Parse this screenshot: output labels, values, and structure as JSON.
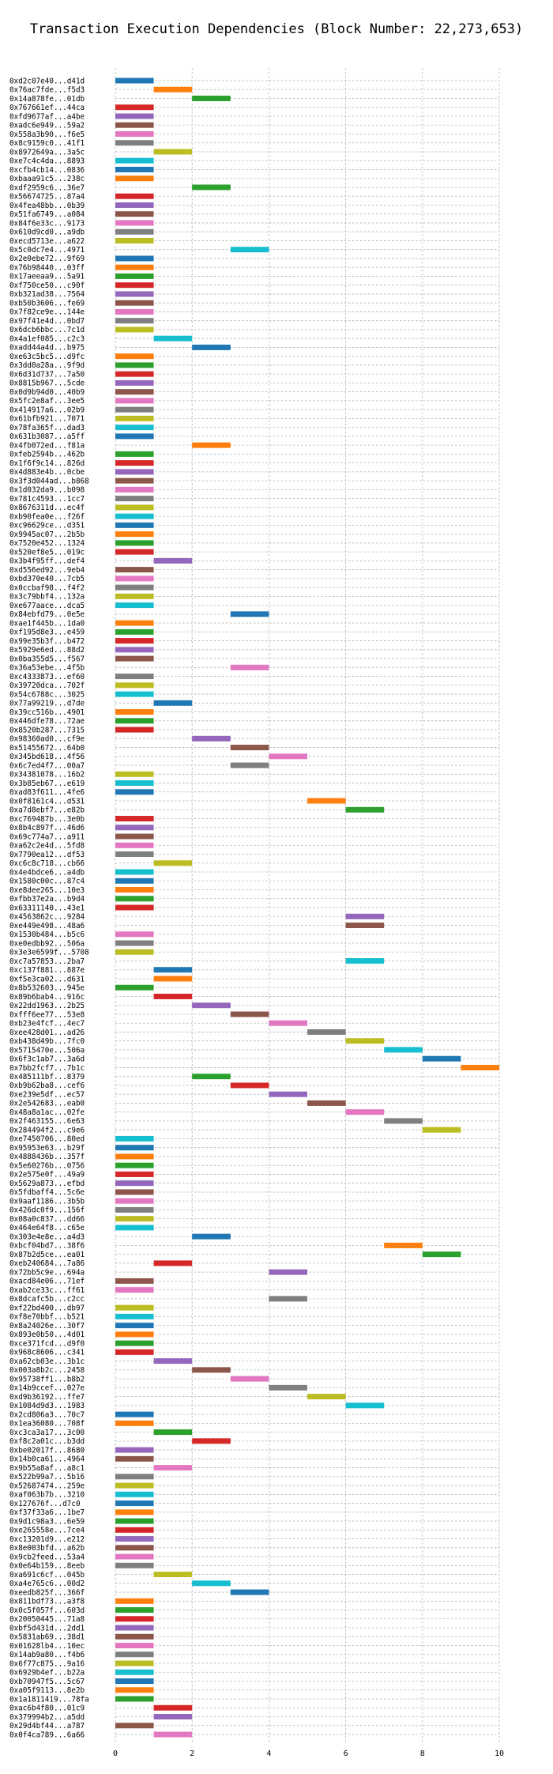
{
  "chart_data": {
    "type": "gantt",
    "title": "Transaction Execution Dependencies (Block Number: 22,273,653)",
    "xlim": [
      0,
      10
    ],
    "xticks": [
      0,
      2,
      4,
      6,
      8,
      10
    ],
    "grid": true,
    "palette": [
      "#1f77b4",
      "#ff7f0e",
      "#2ca02c",
      "#d62728",
      "#9467bd",
      "#8c564b",
      "#e377c2",
      "#7f7f7f",
      "#bcbd22",
      "#17becf"
    ],
    "tasks": [
      {
        "tx": "0xd2c07e40...d41d",
        "start": 0,
        "end": 1
      },
      {
        "tx": "0x76ac7fde...f5d3",
        "start": 1,
        "end": 2
      },
      {
        "tx": "0x14a878fe...01db",
        "start": 2,
        "end": 3
      },
      {
        "tx": "0x767661ef...44ca",
        "start": 0,
        "end": 1
      },
      {
        "tx": "0xfd9677af...a4be",
        "start": 0,
        "end": 1
      },
      {
        "tx": "0xadc6e949...59a2",
        "start": 0,
        "end": 1
      },
      {
        "tx": "0x558a3b90...f6e5",
        "start": 0,
        "end": 1
      },
      {
        "tx": "0x8c9159c0...41f1",
        "start": 0,
        "end": 1
      },
      {
        "tx": "0x8972649a...3a5c",
        "start": 1,
        "end": 2
      },
      {
        "tx": "0xe7c4c4da...8893",
        "start": 0,
        "end": 1
      },
      {
        "tx": "0xcfb4cb14...0836",
        "start": 0,
        "end": 1
      },
      {
        "tx": "0xbaaa91c5...238c",
        "start": 0,
        "end": 1
      },
      {
        "tx": "0xdf2959c6...36e7",
        "start": 2,
        "end": 3
      },
      {
        "tx": "0x56674725...87a4",
        "start": 0,
        "end": 1
      },
      {
        "tx": "0x4fea48bb...0b39",
        "start": 0,
        "end": 1
      },
      {
        "tx": "0x51fa6749...a084",
        "start": 0,
        "end": 1
      },
      {
        "tx": "0x84f6e33c...9173",
        "start": 0,
        "end": 1
      },
      {
        "tx": "0x610d9cd0...a9db",
        "start": 0,
        "end": 1
      },
      {
        "tx": "0xecd5713e...a622",
        "start": 0,
        "end": 1
      },
      {
        "tx": "0x5c0dc7e4...4971",
        "start": 3,
        "end": 4
      },
      {
        "tx": "0x2e0ebe72...9f69",
        "start": 0,
        "end": 1
      },
      {
        "tx": "0x76b98440...03ff",
        "start": 0,
        "end": 1
      },
      {
        "tx": "0x17aeeaa9...5a91",
        "start": 0,
        "end": 1
      },
      {
        "tx": "0xf750ce50...c90f",
        "start": 0,
        "end": 1
      },
      {
        "tx": "0xb321ad38...7564",
        "start": 0,
        "end": 1
      },
      {
        "tx": "0xb50b3606...fe69",
        "start": 0,
        "end": 1
      },
      {
        "tx": "0x7f82ce9e...144e",
        "start": 0,
        "end": 1
      },
      {
        "tx": "0x97f41e4d...0bd7",
        "start": 0,
        "end": 1
      },
      {
        "tx": "0x6dcb6bbc...7c1d",
        "start": 0,
        "end": 1
      },
      {
        "tx": "0x4a1ef085...c2c3",
        "start": 1,
        "end": 2
      },
      {
        "tx": "0xadd44a4d...b975",
        "start": 2,
        "end": 3
      },
      {
        "tx": "0xe63c5bc5...d9fc",
        "start": 0,
        "end": 1
      },
      {
        "tx": "0x3dd0a28a...9f9d",
        "start": 0,
        "end": 1
      },
      {
        "tx": "0x6d31d737...7a50",
        "start": 0,
        "end": 1
      },
      {
        "tx": "0x8815b967...5cde",
        "start": 0,
        "end": 1
      },
      {
        "tx": "0x0d9b94d0...40b9",
        "start": 0,
        "end": 1
      },
      {
        "tx": "0x5fc2e8af...3ee5",
        "start": 0,
        "end": 1
      },
      {
        "tx": "0x414917a6...02b9",
        "start": 0,
        "end": 1
      },
      {
        "tx": "0x61bfb921...7071",
        "start": 0,
        "end": 1
      },
      {
        "tx": "0x78fa365f...dad3",
        "start": 0,
        "end": 1
      },
      {
        "tx": "0x631b3087...a5ff",
        "start": 0,
        "end": 1
      },
      {
        "tx": "0x4fb072ed...f81a",
        "start": 2,
        "end": 3
      },
      {
        "tx": "0xfeb2594b...462b",
        "start": 0,
        "end": 1
      },
      {
        "tx": "0x1f6f9c14...826d",
        "start": 0,
        "end": 1
      },
      {
        "tx": "0x4d883e4b...0cbe",
        "start": 0,
        "end": 1
      },
      {
        "tx": "0x3f3d044ad...b868",
        "start": 0,
        "end": 1
      },
      {
        "tx": "0x1d032da9...b098",
        "start": 0,
        "end": 1
      },
      {
        "tx": "0x781c4593...1cc7",
        "start": 0,
        "end": 1
      },
      {
        "tx": "0x8676311d...ec4f",
        "start": 0,
        "end": 1
      },
      {
        "tx": "0xb90fea0e...f26f",
        "start": 0,
        "end": 1
      },
      {
        "tx": "0xc96629ce...d351",
        "start": 0,
        "end": 1
      },
      {
        "tx": "0x9945ac07...2b5b",
        "start": 0,
        "end": 1
      },
      {
        "tx": "0x7520e452...1324",
        "start": 0,
        "end": 1
      },
      {
        "tx": "0x520ef8e5...019c",
        "start": 0,
        "end": 1
      },
      {
        "tx": "0x3b4f95ff...def4",
        "start": 1,
        "end": 2
      },
      {
        "tx": "0xd556ed92...9eb4",
        "start": 0,
        "end": 1
      },
      {
        "tx": "0xbd370e40...7cb5",
        "start": 0,
        "end": 1
      },
      {
        "tx": "0x0ccbaf98...f4f2",
        "start": 0,
        "end": 1
      },
      {
        "tx": "0x3c79bbf4...132a",
        "start": 0,
        "end": 1
      },
      {
        "tx": "0xe677aace...dca5",
        "start": 0,
        "end": 1
      },
      {
        "tx": "0x84ebfd79...0e5e",
        "start": 3,
        "end": 4
      },
      {
        "tx": "0xae1f445b...1da0",
        "start": 0,
        "end": 1
      },
      {
        "tx": "0xf195d8e3...e459",
        "start": 0,
        "end": 1
      },
      {
        "tx": "0x99e35b3f...b472",
        "start": 0,
        "end": 1
      },
      {
        "tx": "0x5929e6ed...88d2",
        "start": 0,
        "end": 1
      },
      {
        "tx": "0x0ba355d5...f567",
        "start": 0,
        "end": 1
      },
      {
        "tx": "0x36a53ebe...4f5b",
        "start": 3,
        "end": 4
      },
      {
        "tx": "0xc4333873...ef60",
        "start": 0,
        "end": 1
      },
      {
        "tx": "0x39720dca...702f",
        "start": 0,
        "end": 1
      },
      {
        "tx": "0x54c6788c...3025",
        "start": 0,
        "end": 1
      },
      {
        "tx": "0x77a99219...d7de",
        "start": 1,
        "end": 2
      },
      {
        "tx": "0x39cc516b...4901",
        "start": 0,
        "end": 1
      },
      {
        "tx": "0x446dfe78...72ae",
        "start": 0,
        "end": 1
      },
      {
        "tx": "0x8520b287...7315",
        "start": 0,
        "end": 1
      },
      {
        "tx": "0x98360ad0...cf9e",
        "start": 2,
        "end": 3
      },
      {
        "tx": "0x51455672...64b0",
        "start": 3,
        "end": 4
      },
      {
        "tx": "0x345bd618...4f56",
        "start": 4,
        "end": 5
      },
      {
        "tx": "0x6c7ed4f7...00a7",
        "start": 3,
        "end": 4
      },
      {
        "tx": "0x34381078...16b2",
        "start": 0,
        "end": 1
      },
      {
        "tx": "0x3b85eb67...e619",
        "start": 0,
        "end": 1
      },
      {
        "tx": "0xad83f611...4fe6",
        "start": 0,
        "end": 1
      },
      {
        "tx": "0x0f8161c4...d531",
        "start": 5,
        "end": 6
      },
      {
        "tx": "0xa7d8ebf7...e82b",
        "start": 6,
        "end": 7
      },
      {
        "tx": "0xc769487b...3e0b",
        "start": 0,
        "end": 1
      },
      {
        "tx": "0x8b4c897f...46d6",
        "start": 0,
        "end": 1
      },
      {
        "tx": "0x69c774a7...a911",
        "start": 0,
        "end": 1
      },
      {
        "tx": "0xa62c2e4d...5fd8",
        "start": 0,
        "end": 1
      },
      {
        "tx": "0x7790ea12...df53",
        "start": 0,
        "end": 1
      },
      {
        "tx": "0xc6c8c718...cb66",
        "start": 1,
        "end": 2
      },
      {
        "tx": "0x4e4bdce6...a4db",
        "start": 0,
        "end": 1
      },
      {
        "tx": "0x1580c00c...87c4",
        "start": 0,
        "end": 1
      },
      {
        "tx": "0xe8dee265...10e3",
        "start": 0,
        "end": 1
      },
      {
        "tx": "0xfbb37e2a...b9d4",
        "start": 0,
        "end": 1
      },
      {
        "tx": "0x63311140...43e1",
        "start": 0,
        "end": 1
      },
      {
        "tx": "0x4563862c...9284",
        "start": 6,
        "end": 7
      },
      {
        "tx": "0xe449e498...48a6",
        "start": 6,
        "end": 7
      },
      {
        "tx": "0x1530b484...b5c6",
        "start": 0,
        "end": 1
      },
      {
        "tx": "0xe0edbb92...506a",
        "start": 0,
        "end": 1
      },
      {
        "tx": "0x3e3e6599f...5708",
        "start": 0,
        "end": 1
      },
      {
        "tx": "0xc7a57853...2ba7",
        "start": 6,
        "end": 7
      },
      {
        "tx": "0xc137f881...887e",
        "start": 1,
        "end": 2
      },
      {
        "tx": "0xf5e3ca02...d631",
        "start": 1,
        "end": 2
      },
      {
        "tx": "0x8b532603...945e",
        "start": 0,
        "end": 1
      },
      {
        "tx": "0x89b6bab4...916c",
        "start": 1,
        "end": 2
      },
      {
        "tx": "0x22dd1963...2b25",
        "start": 2,
        "end": 3
      },
      {
        "tx": "0xfff6ee77...53e8",
        "start": 3,
        "end": 4
      },
      {
        "tx": "0xb23e4fcf...4ec7",
        "start": 4,
        "end": 5
      },
      {
        "tx": "0xee428d01...ad26",
        "start": 5,
        "end": 6
      },
      {
        "tx": "0xb438d49b...7fc0",
        "start": 6,
        "end": 7
      },
      {
        "tx": "0x5715470e...506a",
        "start": 7,
        "end": 8
      },
      {
        "tx": "0x6f3c1ab7...3a6d",
        "start": 8,
        "end": 9
      },
      {
        "tx": "0x7bb2fcf7...7b1c",
        "start": 9,
        "end": 10
      },
      {
        "tx": "0x485111bf...8379",
        "start": 2,
        "end": 3
      },
      {
        "tx": "0xb9b62ba8...cef6",
        "start": 3,
        "end": 4
      },
      {
        "tx": "0xe239e5df...ec57",
        "start": 4,
        "end": 5
      },
      {
        "tx": "0x2e542683...eab0",
        "start": 5,
        "end": 6
      },
      {
        "tx": "0x48a8a1ac...02fe",
        "start": 6,
        "end": 7
      },
      {
        "tx": "0x2f463155...6e63",
        "start": 7,
        "end": 8
      },
      {
        "tx": "0x284494f2...c9e6",
        "start": 8,
        "end": 9
      },
      {
        "tx": "0xe7450706...80ed",
        "start": 0,
        "end": 1
      },
      {
        "tx": "0x95953e63...b29f",
        "start": 0,
        "end": 1
      },
      {
        "tx": "0x4888436b...357f",
        "start": 0,
        "end": 1
      },
      {
        "tx": "0x5e60276b...0756",
        "start": 0,
        "end": 1
      },
      {
        "tx": "0x2e575e0f...49a9",
        "start": 0,
        "end": 1
      },
      {
        "tx": "0x5629a873...efbd",
        "start": 0,
        "end": 1
      },
      {
        "tx": "0x5fdbaff4...5c6e",
        "start": 0,
        "end": 1
      },
      {
        "tx": "0x9aaf1186...3b5b",
        "start": 0,
        "end": 1
      },
      {
        "tx": "0x426dc0f9...156f",
        "start": 0,
        "end": 1
      },
      {
        "tx": "0x08a0c837...dd66",
        "start": 0,
        "end": 1
      },
      {
        "tx": "0x464e64f8...c65e",
        "start": 0,
        "end": 1
      },
      {
        "tx": "0x303e4e8e...a4d3",
        "start": 2,
        "end": 3
      },
      {
        "tx": "0xbcf04bd7...38f6",
        "start": 7,
        "end": 8
      },
      {
        "tx": "0x87b2d5ce...ea01",
        "start": 8,
        "end": 9
      },
      {
        "tx": "0xeb240684...7a86",
        "start": 1,
        "end": 2
      },
      {
        "tx": "0x72bb5c9e...694a",
        "start": 4,
        "end": 5
      },
      {
        "tx": "0xacd84e06...71ef",
        "start": 0,
        "end": 1
      },
      {
        "tx": "0xab2ce33c...ff61",
        "start": 0,
        "end": 1
      },
      {
        "tx": "0x8dcafc5b...c2cc",
        "start": 4,
        "end": 5
      },
      {
        "tx": "0xf22bd400...db97",
        "start": 0,
        "end": 1
      },
      {
        "tx": "0xf8e70bbf...b521",
        "start": 0,
        "end": 1
      },
      {
        "tx": "0x8a24026e...30f7",
        "start": 0,
        "end": 1
      },
      {
        "tx": "0x893e0b50...4d01",
        "start": 0,
        "end": 1
      },
      {
        "tx": "0xce371fcd...d9f0",
        "start": 0,
        "end": 1
      },
      {
        "tx": "0x968c8606...c341",
        "start": 0,
        "end": 1
      },
      {
        "tx": "0xa62cb03e...3b1c",
        "start": 1,
        "end": 2
      },
      {
        "tx": "0x003a8b2c...2458",
        "start": 2,
        "end": 3
      },
      {
        "tx": "0x95738ff1...b8b2",
        "start": 3,
        "end": 4
      },
      {
        "tx": "0x14b9ccef...027e",
        "start": 4,
        "end": 5
      },
      {
        "tx": "0xd9b36192...ffe7",
        "start": 5,
        "end": 6
      },
      {
        "tx": "0x1084d9d3...1983",
        "start": 6,
        "end": 7
      },
      {
        "tx": "0x2cd806a3...70c7",
        "start": 0,
        "end": 1
      },
      {
        "tx": "0x1ea36080...708f",
        "start": 0,
        "end": 1
      },
      {
        "tx": "0xc3ca3a17...3c00",
        "start": 1,
        "end": 2
      },
      {
        "tx": "0xf8c2a01c...b3dd",
        "start": 2,
        "end": 3
      },
      {
        "tx": "0xbe02017f...8680",
        "start": 0,
        "end": 1
      },
      {
        "tx": "0x14b0ca61...4964",
        "start": 0,
        "end": 1
      },
      {
        "tx": "0x9b55a8af...a8c1",
        "start": 1,
        "end": 2
      },
      {
        "tx": "0x522b99a7...5b16",
        "start": 0,
        "end": 1
      },
      {
        "tx": "0x52687474...259e",
        "start": 0,
        "end": 1
      },
      {
        "tx": "0xaf063b7b...3210",
        "start": 0,
        "end": 1
      },
      {
        "tx": "0x127676f...d7c0",
        "start": 0,
        "end": 1
      },
      {
        "tx": "0xf37f33a6...1be7",
        "start": 0,
        "end": 1
      },
      {
        "tx": "0x9d1c98a3...6e59",
        "start": 0,
        "end": 1
      },
      {
        "tx": "0xe265558e...7ce4",
        "start": 0,
        "end": 1
      },
      {
        "tx": "0xc13201d9...e212",
        "start": 0,
        "end": 1
      },
      {
        "tx": "0x8e003bfd...a62b",
        "start": 0,
        "end": 1
      },
      {
        "tx": "0x9cb2feed...53a4",
        "start": 0,
        "end": 1
      },
      {
        "tx": "0x0e64b159...8eeb",
        "start": 0,
        "end": 1
      },
      {
        "tx": "0xa691c6cf...045b",
        "start": 1,
        "end": 2
      },
      {
        "tx": "0xa4e765c6...00d2",
        "start": 2,
        "end": 3
      },
      {
        "tx": "0xeedb825f...366f",
        "start": 3,
        "end": 4
      },
      {
        "tx": "0x811bdf73...a3f8",
        "start": 0,
        "end": 1
      },
      {
        "tx": "0x0c5f057f...603d",
        "start": 0,
        "end": 1
      },
      {
        "tx": "0x20050445...71a8",
        "start": 0,
        "end": 1
      },
      {
        "tx": "0xbf5d431d...2dd1",
        "start": 0,
        "end": 1
      },
      {
        "tx": "0x5831ab69...38d1",
        "start": 0,
        "end": 1
      },
      {
        "tx": "0x01628lb4...10ec",
        "start": 0,
        "end": 1
      },
      {
        "tx": "0x14ab9a80...f4b6",
        "start": 0,
        "end": 1
      },
      {
        "tx": "0x6f77c875...9a16",
        "start": 0,
        "end": 1
      },
      {
        "tx": "0x6929b4ef...b22a",
        "start": 0,
        "end": 1
      },
      {
        "tx": "0xb70947f5...5c67",
        "start": 0,
        "end": 1
      },
      {
        "tx": "0xa05f9113...8e2b",
        "start": 0,
        "end": 1
      },
      {
        "tx": "0x1a1811419...78fa",
        "start": 0,
        "end": 1
      },
      {
        "tx": "0xac6b4f80...01c9",
        "start": 1,
        "end": 2
      },
      {
        "tx": "0x379994b2...a5dd",
        "start": 1,
        "end": 2
      },
      {
        "tx": "0x29d4bf44...a787",
        "start": 0,
        "end": 1
      },
      {
        "tx": "0x0f4ca789...6a66",
        "start": 1,
        "end": 2
      }
    ]
  }
}
